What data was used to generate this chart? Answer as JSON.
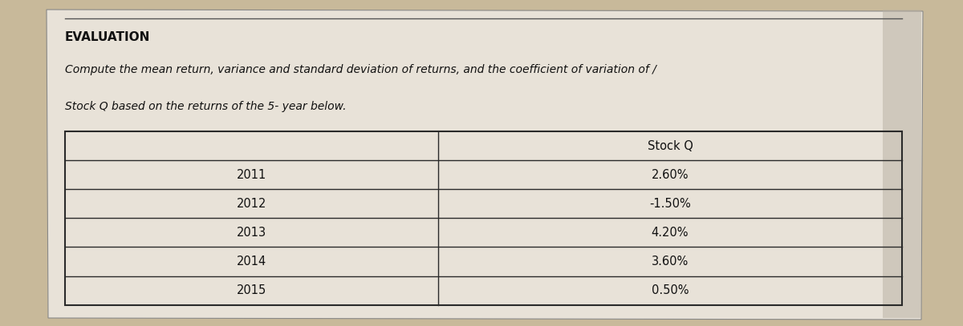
{
  "title": "EVALUATION",
  "subtitle_line1": "Compute the mean return, variance and standard deviation of returns, and the coefficient of variation of /",
  "subtitle_line2": "Stock Q based on the returns of the 5- year below.",
  "col_header": "Stock Q",
  "years": [
    "2011",
    "2012",
    "2013",
    "2014",
    "2015"
  ],
  "returns": [
    "2.60%",
    "-1.50%",
    "4.20%",
    "3.60%",
    "0.50%"
  ],
  "bg_color": "#c8b99a",
  "paper_color": "#e8e2d8",
  "paper_color2": "#ddd8ce",
  "border_color": "#2a2a2a",
  "title_fontsize": 11,
  "subtitle_fontsize": 10,
  "table_fontsize": 10.5
}
